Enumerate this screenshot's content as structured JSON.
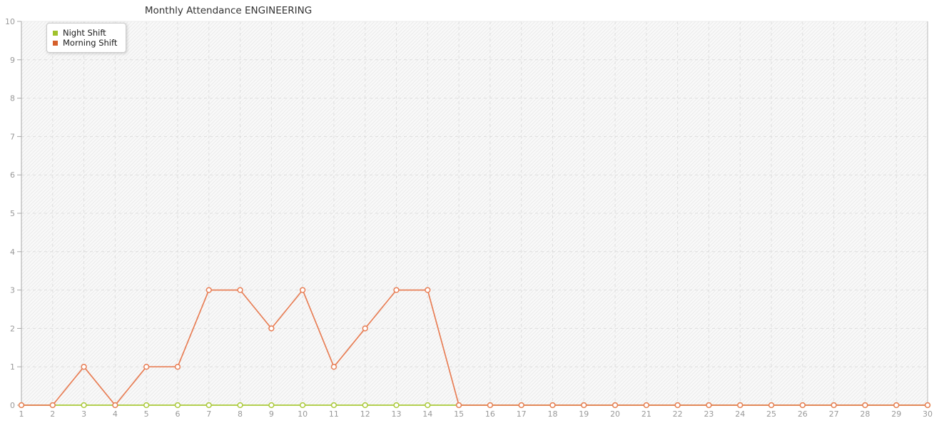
{
  "title": "Monthly Attendance ENGINEERING",
  "chart_data": {
    "type": "line",
    "title": "Monthly Attendance ENGINEERING",
    "x": [
      1,
      2,
      3,
      4,
      5,
      6,
      7,
      8,
      9,
      10,
      11,
      12,
      13,
      14,
      15,
      16,
      17,
      18,
      19,
      20,
      21,
      22,
      23,
      24,
      25,
      26,
      27,
      28,
      29,
      30
    ],
    "series": [
      {
        "name": "Night Shift",
        "line_color": "#aac938",
        "swatch_color": "#a0c22d",
        "values": [
          0,
          0,
          0,
          0,
          0,
          0,
          0,
          0,
          0,
          0,
          0,
          0,
          0,
          0,
          0,
          0,
          0,
          0,
          0,
          0,
          0,
          0,
          0,
          0,
          0,
          0,
          0,
          0,
          0,
          0
        ]
      },
      {
        "name": "Morning Shift",
        "line_color": "#e87e55",
        "swatch_color": "#d5602c",
        "values": [
          0,
          0,
          1,
          0,
          1,
          1,
          3,
          3,
          2,
          3,
          1,
          2,
          3,
          3,
          0,
          0,
          0,
          0,
          0,
          0,
          0,
          0,
          0,
          0,
          0,
          0,
          0,
          0,
          0,
          0
        ]
      }
    ],
    "xlabel": "",
    "ylabel": "",
    "xlim": [
      1,
      30
    ],
    "ylim": [
      0,
      10
    ],
    "y_ticks": [
      0,
      1,
      2,
      3,
      4,
      5,
      6,
      7,
      8,
      9,
      10
    ],
    "grid": true,
    "grid_style": "dashed",
    "legend_position": "top-left",
    "marker": "open-circle"
  },
  "style": {
    "axis_label_color": "#999999",
    "grid_line_color": "#dedede",
    "plot_bg_color": "#f9f9f9",
    "hatch_line_color": "#ebebeb"
  }
}
